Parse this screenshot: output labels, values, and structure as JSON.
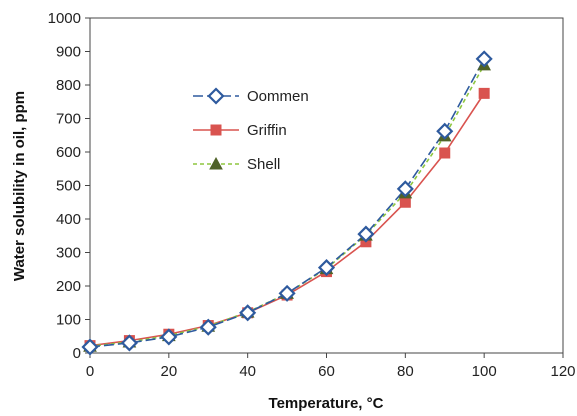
{
  "chart_data": {
    "type": "line",
    "xlabel": "Temperature, °C",
    "ylabel": "Water solubility in oil, ppm",
    "xlim": [
      0,
      120
    ],
    "ylim": [
      0,
      1000
    ],
    "x_ticks": [
      0,
      20,
      40,
      60,
      80,
      100,
      120
    ],
    "y_ticks": [
      0,
      100,
      200,
      300,
      400,
      500,
      600,
      700,
      800,
      900,
      1000
    ],
    "grid": false,
    "legend_position": "upper-left inside plot",
    "x": [
      0,
      10,
      20,
      30,
      40,
      50,
      60,
      70,
      80,
      90,
      100
    ],
    "series": [
      {
        "name": "Oommen",
        "color": "#2E5A9E",
        "line_style": "long-dash",
        "marker": "open-diamond",
        "values": [
          18,
          30,
          48,
          77,
          120,
          178,
          255,
          355,
          490,
          662,
          878
        ]
      },
      {
        "name": "Griffin",
        "color": "#D9534F",
        "line_style": "solid",
        "marker": "filled-square",
        "values": [
          22,
          37,
          56,
          82,
          120,
          173,
          243,
          332,
          450,
          597,
          775
        ]
      },
      {
        "name": "Shell",
        "color": "#8DC63F",
        "marker_color": "#4F6228",
        "line_style": "short-dash",
        "marker": "filled-triangle",
        "values": [
          20,
          33,
          52,
          80,
          122,
          178,
          252,
          352,
          478,
          648,
          860
        ]
      }
    ]
  }
}
